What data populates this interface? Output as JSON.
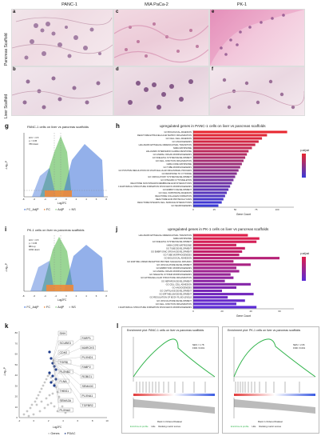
{
  "panel_a_f": {
    "columns": [
      "PANC-1",
      "MIA PaCa-2",
      "PK-1"
    ],
    "rows": [
      "Pancreas Scaffold",
      "Liver Scaffold"
    ],
    "letters": [
      "a",
      "b",
      "c",
      "d",
      "e",
      "f"
    ]
  },
  "volcano_g": {
    "letter": "g",
    "title": "PANC-1 cells on liver vs pancreas scaffolds",
    "annot": [
      "LFC > 0.5",
      "p < 0.05",
      "780 down"
    ],
    "xlabel": "Log2FC",
    "ylabel": "-Log₁₀P",
    "xticks": [
      "-8",
      "-6",
      "-4",
      "-2",
      "0",
      "2",
      "4",
      "6",
      "8"
    ],
    "yticks": [
      "0",
      "2",
      "4",
      "6",
      "8",
      "10",
      "12"
    ],
    "legend": [
      "FC_AdjP",
      "FC",
      "AdjP",
      "NS"
    ]
  },
  "volcano_i": {
    "letter": "i",
    "title": "PK-1 cells on liver vs pancreas scaffolds",
    "annot": [
      "LFC > 0.5",
      "p < 0.05",
      "884 up",
      "1692 down"
    ],
    "xlabel": "Log2FC",
    "ylabel": "-Log₁₀P",
    "xticks": [
      "-8",
      "-6",
      "-4",
      "-2",
      "0",
      "2",
      "4",
      "6",
      "8"
    ],
    "yticks": [
      "0",
      "2",
      "4",
      "6",
      "8",
      "10",
      "12",
      "14"
    ],
    "legend": [
      "FC_AdjP",
      "FC",
      "AdjP",
      "NS"
    ]
  },
  "bar_h": {
    "letter": "h",
    "title": "upregulated genes in PANC-1 cells on liver vs pancreas scaffolds",
    "xlabel": "Gene Count",
    "legend_title": "p.adjust",
    "terms": [
      "GO BIOLOGICAL ADHESION",
      "REACTOME EXTRACELLULAR MATRIX ORGANIZATION",
      "GO CELL CELL ADHESION",
      "GO ANGIOGENESIS",
      "HALLMARK EPITHELIAL MESENCHYMAL TRANSITION",
      "NABA MATRISOME",
      "HALLMARK INTERFERON GAMMA RESPONSE",
      "GO ANIMAL ORGAN MORPHOGENESIS",
      "GO SKELETAL SYSTEM DEVELOPMENT",
      "GO CELL JUNCTION ORGANIZATION",
      "NABA CORE MATRISOME",
      "GO TUBE MORPHOGENESIS",
      "GO POSITIVE REGULATION OF MULTICELLULAR ORGANISMAL PROCESS",
      "GO RESPONSE TO CYTOKINE",
      "GO CIRCULATORY SYSTEM DEVELOPMENT",
      "GO INTEGRIN CYTOSKELETON",
      "REACTOME NON INTEGRIN MEMBRANE ECM INTERACTIONS",
      "GO ANATOMICAL STRUCTURE FORMATION INVOLVED IN MORPHOGENESIS",
      "GO EMBRYO DEVELOPMENT",
      "GO CELL SUBSTRATE ADHESION",
      "REACTOME COLLAGEN FORMATION",
      "REACTOME ECM PROTEOGLYCANS",
      "REACTOME INTEGRIN CELL SURFACE INTERACTIONS",
      "GO NEUROGENESIS"
    ],
    "values": [
      112,
      88,
      82,
      78,
      74,
      70,
      66,
      64,
      62,
      60,
      58,
      56,
      54,
      52,
      50,
      48,
      46,
      44,
      42,
      40,
      38,
      36,
      34,
      30
    ],
    "padj": [
      0.001,
      0.001,
      0.001,
      0.001,
      0.001,
      0.001,
      0.001,
      0.001,
      0.001,
      0.001,
      0.001,
      0.001,
      0.001,
      0.001,
      0.001,
      0.002,
      0.003,
      0.004,
      0.005,
      0.006,
      0.007,
      0.008,
      0.009,
      0.01
    ],
    "xticks": [
      "0",
      "25",
      "50",
      "75",
      "100"
    ],
    "xlim": [
      0,
      120
    ],
    "colors": {
      "low": "#e8262f",
      "high": "#3a3ad8"
    }
  },
  "bar_j": {
    "letter": "j",
    "title": "upregulated genes in PK-1 cells on liver vs pancreas scaffolds",
    "xlabel": "Gene Count",
    "legend_title": "p.adjust",
    "terms": [
      "HALLMARK EPITHELIAL MESENCHYMAL TRANSITION",
      "NABA MATRISOME",
      "GO SKELETAL SYSTEM DEVELOPMENT",
      "NABA CORE MATRISOME",
      "GO TUBE DEVELOPMENT",
      "GO EMBRYONIC ORGAN DEVELOPMENT",
      "GO TUBE MORPHOGENESIS",
      "GO BIOLOGICAL ADHESION",
      "GO ENZYME LINKED RECEPTOR PROTEIN SIGNALING PATHWAY",
      "GO VASCULATURE DEVELOPMENT",
      "GO EMBRYONIC MORPHOGENESIS",
      "GO ANIMAL ORGAN MORPHOGENESIS",
      "GO SKELETAL SYSTEM MORPHOGENESIS",
      "GO EXTRACELLULAR STRUCTURE ORGANIZATION",
      "GO NEPHRON DEVELOPMENT",
      "GO CELL CELL ADHESION",
      "GO ANGIOGENESIS",
      "GO CARTILAGE DEVELOPMENT",
      "GO EPITHELIUM DEVELOPMENT",
      "GO REGULATION OF BODY FLUID LEVELS",
      "GO VASCULATURE DEVELOPMENT",
      "GO CELL JUNCTION ORGANIZATION",
      "GO ANATOMICAL STRUCTURE FORMATION INVOLVED IN MORPHOGENESIS"
    ],
    "values": [
      38,
      46,
      44,
      30,
      36,
      34,
      32,
      60,
      28,
      40,
      30,
      32,
      26,
      28,
      22,
      40,
      30,
      20,
      42,
      24,
      36,
      30,
      44
    ],
    "padj": [
      2e-05,
      2e-05,
      3e-05,
      4e-05,
      5e-05,
      6e-05,
      7e-05,
      8e-05,
      9e-05,
      0.0001,
      0.00011,
      0.00012,
      0.00013,
      0.00014,
      0.00015,
      0.00016,
      0.00017,
      0.00018,
      0.00019,
      0.0002,
      0.00021,
      0.00022,
      0.00023
    ],
    "xticks": [
      "0",
      "20",
      "40",
      "60"
    ],
    "xlim": [
      0,
      70
    ],
    "colors": {
      "low": "#e01e4a",
      "high": "#5b2bd6"
    }
  },
  "panel_k": {
    "letter": "k",
    "genes": [
      "SHH",
      "FARP1",
      "SCUBE3",
      "MARCKS",
      "CDH2",
      "PLXND1",
      "TGFBI",
      "FABP2",
      "PLXNB2",
      "ROBO1",
      "FLNA",
      "SEMA3C",
      "THBS1",
      "PLXNA1",
      "SEMA3A",
      "TGFBR2",
      "PLXNA2"
    ],
    "xlabel": "Log2FC",
    "ylabel": "-Log₁₀P",
    "xticks": [
      "-2",
      "0",
      "2",
      "4",
      "6",
      "8",
      "10"
    ],
    "yticks": [
      "0",
      "10",
      "20",
      "30",
      "40",
      "50",
      "60",
      "70",
      "80"
    ],
    "legend": [
      "Genes",
      "PDAC"
    ]
  },
  "panel_l": {
    "letter": "l",
    "left": {
      "title": "Enrichment plot: PANC-1 cells on liver vs pancreas scaffolds",
      "nes": "NES = 1.78",
      "fdr": "FDR <0.001",
      "ylabel": "Enrichment score (ES)",
      "xlabel": "Rank in Ordered Dataset",
      "legend": [
        "Enrichment profile",
        "Hits",
        "Ranking metric scores"
      ]
    },
    "right": {
      "title": "Enrichment plot: PK-1 cells on liver vs pancreas scaffolds",
      "nes": "NES = 2.06",
      "fdr": "FDR <0.001",
      "ylabel": "Enrichment score (ES)",
      "xlabel": "Rank in Ordered Dataset",
      "legend": [
        "Enrichment profile",
        "Hits",
        "Ranking metric scores"
      ]
    }
  },
  "chart_data": [
    {
      "type": "bar",
      "title": "upregulated genes in PANC-1 cells on liver vs pancreas scaffolds",
      "xlabel": "Gene Count",
      "categories_ref": "bar_h.terms",
      "values_ref": "bar_h.values"
    },
    {
      "type": "bar",
      "title": "upregulated genes in PK-1 cells on liver vs pancreas scaffolds",
      "xlabel": "Gene Count",
      "categories_ref": "bar_j.terms",
      "values_ref": "bar_j.values"
    }
  ]
}
